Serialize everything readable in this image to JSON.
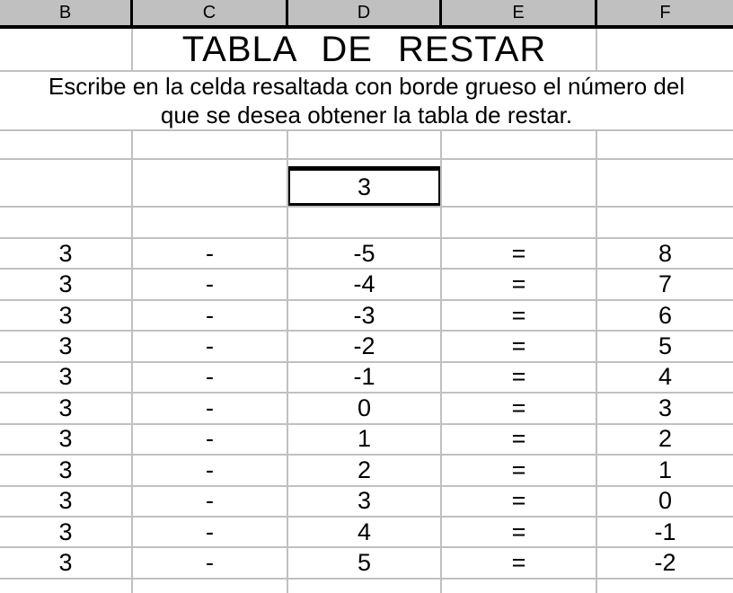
{
  "spreadsheet": {
    "column_headers": [
      "B",
      "C",
      "D",
      "E",
      "F"
    ],
    "title": "TABLA DE RESTAR",
    "instructions": {
      "line1": "Escribe en la celda resaltada con borde grueso el número del",
      "line2": "que se desea obtener la tabla de restar."
    },
    "input_cell": {
      "value": "3"
    },
    "table": {
      "rows": [
        [
          "3",
          "-",
          "-5",
          "=",
          "8"
        ],
        [
          "3",
          "-",
          "-4",
          "=",
          "7"
        ],
        [
          "3",
          "-",
          "-3",
          "=",
          "6"
        ],
        [
          "3",
          "-",
          "-2",
          "=",
          "5"
        ],
        [
          "3",
          "-",
          "-1",
          "=",
          "4"
        ],
        [
          "3",
          "-",
          "0",
          "=",
          "3"
        ],
        [
          "3",
          "-",
          "1",
          "=",
          "2"
        ],
        [
          "3",
          "-",
          "2",
          "=",
          "1"
        ],
        [
          "3",
          "-",
          "3",
          "=",
          "0"
        ],
        [
          "3",
          "-",
          "4",
          "=",
          "-1"
        ],
        [
          "3",
          "-",
          "5",
          "=",
          "-2"
        ]
      ]
    },
    "colors": {
      "header_bg": "#c0c0c0",
      "gridline": "#c0c0c0",
      "thick_border": "#000000",
      "text": "#000000",
      "background": "#ffffff"
    }
  }
}
